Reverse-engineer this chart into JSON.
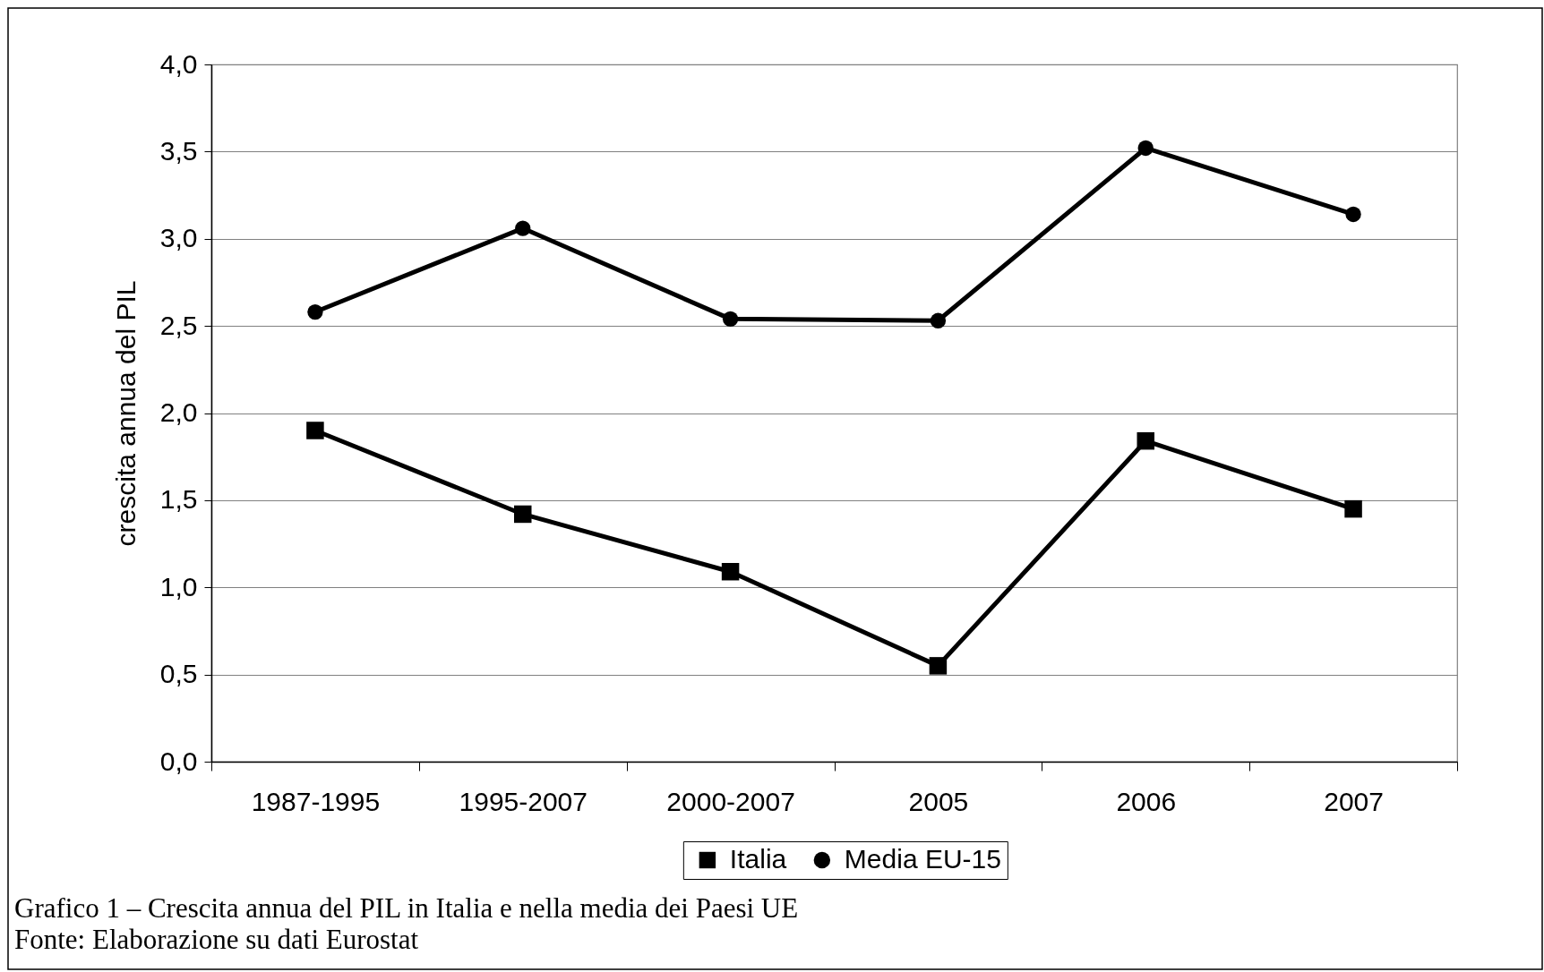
{
  "chart_data": {
    "type": "line",
    "ylabel": "crescita annua del PIL",
    "categories": [
      "1987-1995",
      "1995-2007",
      "2000-2007",
      "2005",
      "2006",
      "2007"
    ],
    "series": [
      {
        "name": "Italia",
        "color": "#000000",
        "marker": "square",
        "values": [
          1.9,
          1.42,
          1.09,
          0.55,
          1.84,
          1.45
        ]
      },
      {
        "name": "Media EU-15",
        "color": "#000000",
        "marker": "circle",
        "values": [
          2.58,
          3.06,
          2.54,
          2.53,
          3.52,
          3.14
        ]
      }
    ],
    "ylim": [
      0,
      4
    ],
    "yticks": [
      {
        "value": 0,
        "label": "0,0"
      },
      {
        "value": 0.5,
        "label": "0,5"
      },
      {
        "value": 1,
        "label": "1,0"
      },
      {
        "value": 1.5,
        "label": "1,5"
      },
      {
        "value": 2,
        "label": "2,0"
      },
      {
        "value": 2.5,
        "label": "2,5"
      },
      {
        "value": 3,
        "label": "3,0"
      },
      {
        "value": 3.5,
        "label": "3,5"
      },
      {
        "value": 4,
        "label": "4,0"
      }
    ],
    "grid": "y",
    "legend": "bottom",
    "line_style": "solid",
    "annotations": [
      "Grafico 1 – Crescita annua del PIL in Italia e nella media dei Paesi UE",
      "Fonte: Elaborazione su dati Eurostat"
    ]
  }
}
